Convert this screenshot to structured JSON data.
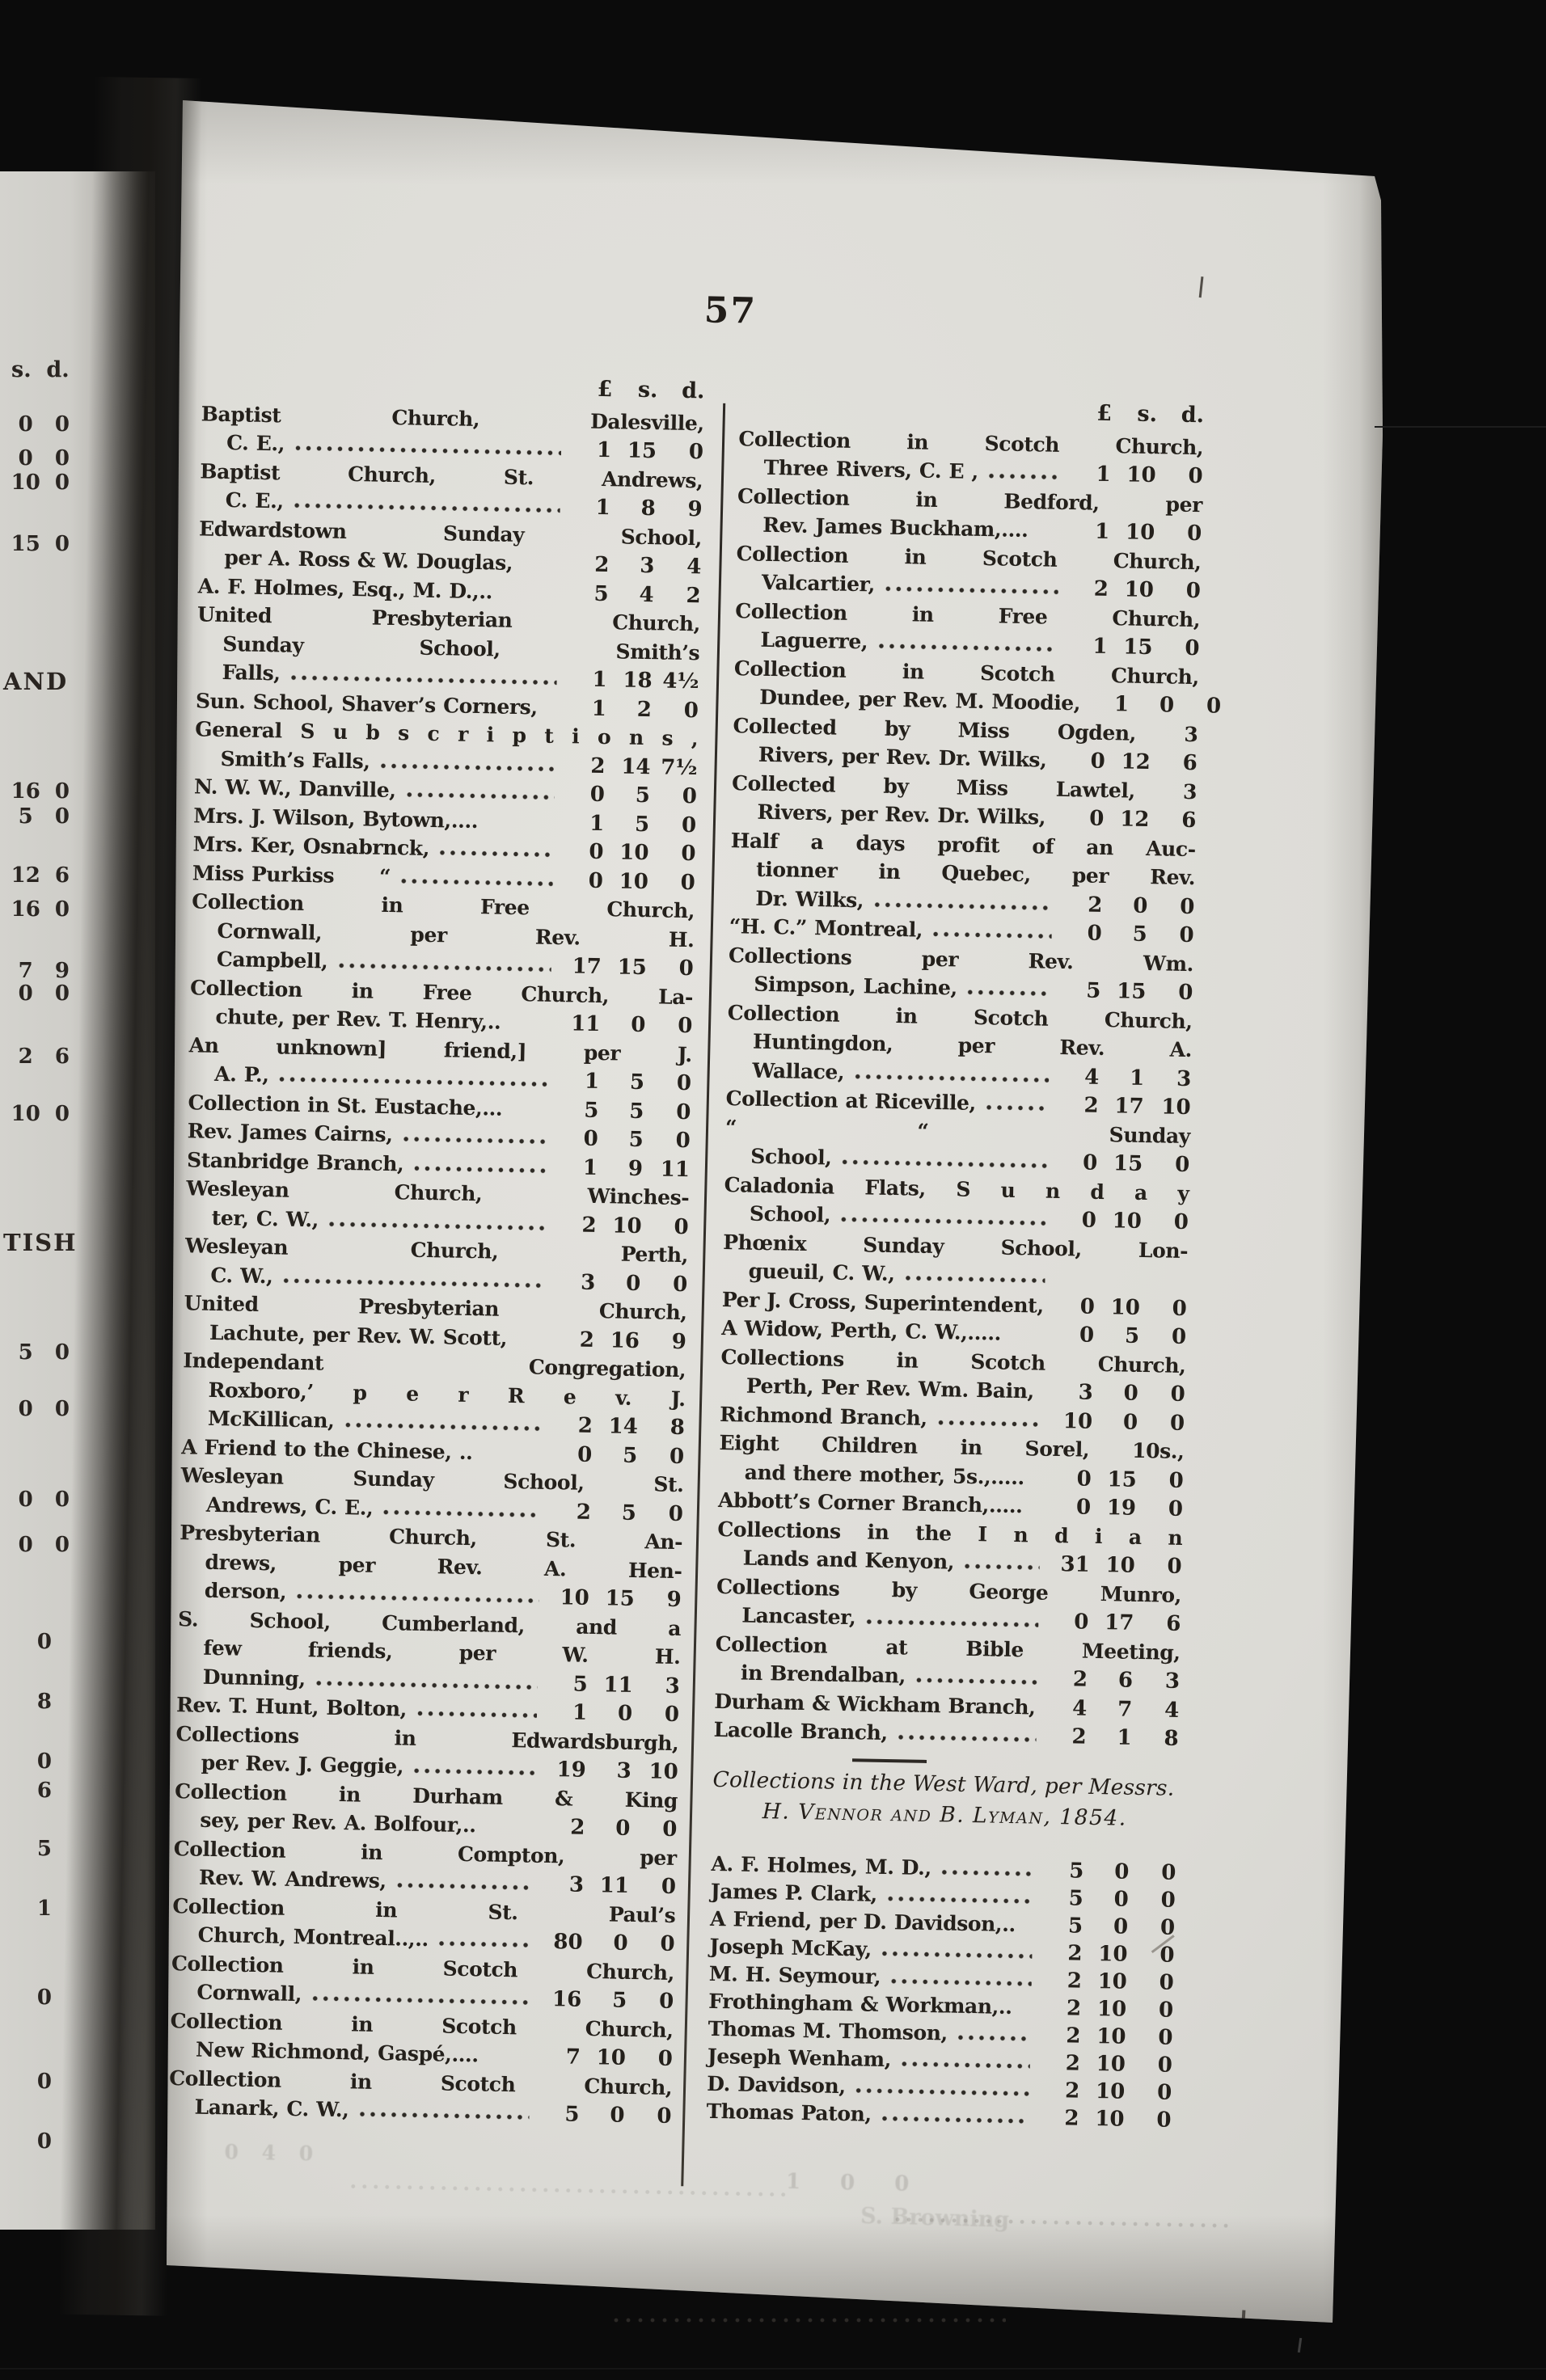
{
  "page_number": "57",
  "currency": {
    "pound": "£",
    "shilling": "s.",
    "pence": "d."
  },
  "left_margin": {
    "fragments": [
      "s.  d.",
      "0   0",
      "0   0",
      "10  0",
      "15  0",
      "AND",
      "16  0",
      "5   0",
      "12  6",
      "16  0",
      "7   9",
      "0   0",
      "2   6",
      "10  0",
      "TISH",
      "5   0",
      "0   0",
      "0   0",
      "0   0",
      "0",
      "8",
      "0",
      "6",
      "5",
      "1",
      "0",
      "0",
      "0"
    ]
  },
  "columns": {
    "left": [
      {
        "lines": [
          "Baptist Church, Dalesville,",
          "C. E.,"
        ],
        "leader": true,
        "amt": [
          "1",
          "15",
          "0"
        ]
      },
      {
        "lines": [
          "Baptist Church, St. Andrews,",
          "C. E.,"
        ],
        "leader": true,
        "amt": [
          "1",
          "8",
          "9"
        ]
      },
      {
        "lines": [
          "Edwardstown Sunday School,",
          "per A. Ross & W. Douglas,"
        ],
        "leader": false,
        "amt": [
          "2",
          "3",
          "4"
        ]
      },
      {
        "lines": [
          "A. F. Holmes, Esq., M. D.,.."
        ],
        "leader": false,
        "amt": [
          "5",
          "4",
          "2"
        ]
      },
      {
        "lines": [
          "United Presbyterian Church,",
          "Sunday School, Smith’s",
          "Falls,"
        ],
        "leader": true,
        "amt": [
          "1",
          "18",
          "4½"
        ]
      },
      {
        "lines": [
          "Sun. School, Shaver’s Corners,"
        ],
        "leader": false,
        "amt": [
          "1",
          "2",
          "0"
        ]
      },
      {
        "lines": [
          "General S u b s c r i p t i o n s ,",
          "Smith’s Falls,"
        ],
        "leader": true,
        "amt": [
          "2",
          "14",
          "7½"
        ]
      },
      {
        "lines": [
          "N. W. W., Danville,"
        ],
        "leader": true,
        "amt": [
          "0",
          "5",
          "0"
        ]
      },
      {
        "lines": [
          "Mrs. J. Wilson, Bytown,...."
        ],
        "leader": false,
        "amt": [
          "1",
          "5",
          "0"
        ]
      },
      {
        "lines": [
          "Mrs. Ker, Osnabrnck,"
        ],
        "leader": true,
        "amt": [
          "0",
          "10",
          "0"
        ]
      },
      {
        "lines": [
          "Miss Purkiss      “"
        ],
        "leader": true,
        "amt": [
          "0",
          "10",
          "0"
        ]
      },
      {
        "lines": [
          "Collection in Free Church,",
          "Cornwall, per Rev. H.",
          "Campbell,"
        ],
        "leader": true,
        "amt": [
          "17",
          "15",
          "0"
        ]
      },
      {
        "lines": [
          "Collection in Free Church, La-",
          "chute, per Rev. T. Henry,.."
        ],
        "leader": false,
        "amt": [
          "11",
          "0",
          "0"
        ]
      },
      {
        "lines": [
          "An unknown] friend,] per J.",
          "A. P.,"
        ],
        "leader": true,
        "amt": [
          "1",
          "5",
          "0"
        ]
      },
      {
        "lines": [
          "Collection in St. Eustache,..."
        ],
        "leader": false,
        "amt": [
          "5",
          "5",
          "0"
        ]
      },
      {
        "lines": [
          "Rev. James Cairns,"
        ],
        "leader": true,
        "amt": [
          "0",
          "5",
          "0"
        ]
      },
      {
        "lines": [
          "Stanbridge Branch,"
        ],
        "leader": true,
        "amt": [
          "1",
          "9",
          "11"
        ]
      },
      {
        "lines": [
          "Wesleyan Church, Winches-",
          "ter, C. W.,"
        ],
        "leader": true,
        "amt": [
          "2",
          "10",
          "0"
        ]
      },
      {
        "lines": [
          "Wesleyan Church, Perth,",
          "C. W.,"
        ],
        "leader": true,
        "amt": [
          "3",
          "0",
          "0"
        ]
      },
      {
        "lines": [
          "United Presbyterian Church,",
          "Lachute, per Rev. W. Scott,"
        ],
        "leader": false,
        "amt": [
          "2",
          "16",
          "9"
        ]
      },
      {
        "lines": [
          "Independant Congregation,",
          "Roxboro,’ p e r R e v. J.",
          "McKillican,"
        ],
        "leader": true,
        "amt": [
          "2",
          "14",
          "8"
        ]
      },
      {
        "lines": [
          "A Friend to the Chinese, .."
        ],
        "leader": false,
        "amt": [
          "0",
          "5",
          "0"
        ]
      },
      {
        "lines": [
          "Wesleyan Sunday School, St.",
          "Andrews, C. E.,"
        ],
        "leader": true,
        "amt": [
          "2",
          "5",
          "0"
        ]
      },
      {
        "lines": [
          "Presbyterian Church, St. An-",
          "drews, per Rev. A. Hen-",
          "derson,"
        ],
        "leader": true,
        "amt": [
          "10",
          "15",
          "9"
        ]
      },
      {
        "lines": [
          "S. School, Cumberland, and a",
          "few friends, per W. H.",
          "Dunning,"
        ],
        "leader": true,
        "amt": [
          "5",
          "11",
          "3"
        ]
      },
      {
        "lines": [
          "Rev. T. Hunt, Bolton,"
        ],
        "leader": true,
        "amt": [
          "1",
          "0",
          "0"
        ]
      },
      {
        "lines": [
          "Collections in Edwardsburgh,",
          "per Rev. J. Geggie,"
        ],
        "leader": true,
        "amt": [
          "19",
          "3",
          "10"
        ]
      },
      {
        "lines": [
          "Collection in Durham & King",
          "sey, per Rev. A. Bolfour,.."
        ],
        "leader": false,
        "amt": [
          "2",
          "0",
          "0"
        ]
      },
      {
        "lines": [
          "Collection in Compton, per",
          "Rev. W. Andrews,"
        ],
        "leader": true,
        "amt": [
          "3",
          "11",
          "0"
        ]
      },
      {
        "lines": [
          "Collection in St. Paul’s",
          "Church, Montreal..,.."
        ],
        "leader": true,
        "amt": [
          "80",
          "0",
          "0"
        ]
      },
      {
        "lines": [
          "Collection in Scotch Church,",
          "Cornwall,"
        ],
        "leader": true,
        "amt": [
          "16",
          "5",
          "0"
        ]
      },
      {
        "lines": [
          "Collection in Scotch Church,",
          "New Richmond, Gaspé,...."
        ],
        "leader": false,
        "amt": [
          "7",
          "10",
          "0"
        ]
      },
      {
        "lines": [
          "Collection in Scotch Church,",
          "Lanark, C. W.,"
        ],
        "leader": true,
        "amt": [
          "5",
          "0",
          "0"
        ]
      }
    ],
    "right": [
      {
        "lines": [
          "Collection in Scotch Church,",
          "Three Rivers, C. E ,"
        ],
        "leader": true,
        "amt": [
          "1",
          "10",
          "0"
        ]
      },
      {
        "lines": [
          "Collection in Bedford, per",
          "Rev. James Buckham,...."
        ],
        "leader": false,
        "amt": [
          "1",
          "10",
          "0"
        ]
      },
      {
        "lines": [
          "Collection in Scotch Church,",
          "Valcartier,"
        ],
        "leader": true,
        "amt": [
          "2",
          "10",
          "0"
        ]
      },
      {
        "lines": [
          "Collection in Free Church,",
          "Laguerre,"
        ],
        "leader": true,
        "amt": [
          "1",
          "15",
          "0"
        ]
      },
      {
        "lines": [
          "Collection in Scotch Church,",
          "Dundee, per Rev. M. Moodie,"
        ],
        "leader": false,
        "amt": [
          "1",
          "0",
          "0"
        ]
      },
      {
        "lines": [
          "Collected by Miss Ogden, 3",
          "Rivers, per Rev. Dr. Wilks,"
        ],
        "leader": false,
        "amt": [
          "0",
          "12",
          "6"
        ]
      },
      {
        "lines": [
          "Collected by Miss Lawtel, 3",
          "Rivers, per Rev. Dr. Wilks,"
        ],
        "leader": false,
        "amt": [
          "0",
          "12",
          "6"
        ]
      },
      {
        "lines": [
          "Half a days profit of an Auc-",
          "tionner in Quebec, per Rev.",
          "Dr. Wilks,"
        ],
        "leader": true,
        "amt": [
          "2",
          "0",
          "0"
        ]
      },
      {
        "lines": [
          "“H. C.” Montreal,"
        ],
        "leader": true,
        "amt": [
          "0",
          "5",
          "0"
        ]
      },
      {
        "lines": [
          "Collections per Rev. Wm.",
          "Simpson, Lachine,"
        ],
        "leader": true,
        "amt": [
          "5",
          "15",
          "0"
        ]
      },
      {
        "lines": [
          "Collection in Scotch Church,",
          "Huntingdon, per Rev. A.",
          "Wallace,"
        ],
        "leader": true,
        "amt": [
          "4",
          "1",
          "3"
        ]
      },
      {
        "lines": [
          "Collection at Riceville,"
        ],
        "leader": true,
        "amt": [
          "2",
          "17",
          "10"
        ]
      },
      {
        "lines": [
          "“ “ Sunday",
          "School,"
        ],
        "leader": true,
        "amt": [
          "0",
          "15",
          "0"
        ]
      },
      {
        "lines": [
          "Caladonia Flats, S u n d a y",
          "School,"
        ],
        "leader": true,
        "amt": [
          "0",
          "10",
          "0"
        ]
      },
      {
        "lines": [
          "Phœnix Sunday School, Lon-",
          "gueuil, C. W.,"
        ],
        "leader": true,
        "amt": [
          "",
          "",
          ""
        ]
      },
      {
        "lines": [
          "Per J. Cross, Superintendent,"
        ],
        "leader": false,
        "amt": [
          "0",
          "10",
          "0"
        ]
      },
      {
        "lines": [
          "A Widow, Perth, C. W.,....."
        ],
        "leader": false,
        "amt": [
          "0",
          "5",
          "0"
        ]
      },
      {
        "lines": [
          "Collections in Scotch Church,",
          "Perth, Per Rev. Wm. Bain,"
        ],
        "leader": false,
        "amt": [
          "3",
          "0",
          "0"
        ]
      },
      {
        "lines": [
          "Richmond Branch,"
        ],
        "leader": true,
        "amt": [
          "10",
          "0",
          "0"
        ]
      },
      {
        "lines": [
          "Eight Children in Sorel, 10s.,",
          "and there mother, 5s.,....."
        ],
        "leader": false,
        "amt": [
          "0",
          "15",
          "0"
        ]
      },
      {
        "lines": [
          "Abbott’s Corner Branch,....."
        ],
        "leader": false,
        "amt": [
          "0",
          "19",
          "0"
        ]
      },
      {
        "lines": [
          "Collections in the I n d i a n",
          "Lands and Kenyon,"
        ],
        "leader": true,
        "amt": [
          "31",
          "10",
          "0"
        ]
      },
      {
        "lines": [
          "Collections by George Munro,",
          "Lancaster,"
        ],
        "leader": true,
        "amt": [
          "0",
          "17",
          "6"
        ]
      },
      {
        "lines": [
          "Collection at Bible Meeting,",
          "in Brendalban,"
        ],
        "leader": true,
        "amt": [
          "2",
          "6",
          "3"
        ]
      },
      {
        "lines": [
          "Durham & Wickham Branch,"
        ],
        "leader": false,
        "amt": [
          "4",
          "7",
          "4"
        ]
      },
      {
        "lines": [
          "Lacolle Branch,"
        ],
        "leader": true,
        "amt": [
          "2",
          "1",
          "8"
        ]
      }
    ]
  },
  "west_ward": {
    "heading_line1": "Collections in the West Ward, per Messrs.",
    "heading_line2": "H. Vennor and B. Lyman, 1854.",
    "entries": [
      {
        "lines": [
          "A. F. Holmes, M. D.,"
        ],
        "leader": true,
        "amt": [
          "5",
          "0",
          "0"
        ]
      },
      {
        "lines": [
          "James P. Clark,"
        ],
        "leader": true,
        "amt": [
          "5",
          "0",
          "0"
        ]
      },
      {
        "lines": [
          "A Friend, per D. Davidson,.."
        ],
        "leader": false,
        "amt": [
          "5",
          "0",
          "0"
        ]
      },
      {
        "lines": [
          "Joseph McKay,"
        ],
        "leader": true,
        "amt": [
          "2",
          "10",
          "0"
        ]
      },
      {
        "lines": [
          "M. H. Seymour,"
        ],
        "leader": true,
        "amt": [
          "2",
          "10",
          "0"
        ]
      },
      {
        "lines": [
          "Frothingham & Workman,.."
        ],
        "leader": false,
        "amt": [
          "2",
          "10",
          "0"
        ]
      },
      {
        "lines": [
          "Thomas M. Thomson,"
        ],
        "leader": true,
        "amt": [
          "2",
          "10",
          "0"
        ]
      },
      {
        "lines": [
          "Jeseph Wenham,"
        ],
        "leader": true,
        "amt": [
          "2",
          "10",
          "0"
        ]
      },
      {
        "lines": [
          "D. Davidson,"
        ],
        "leader": true,
        "amt": [
          "2",
          "10",
          "0"
        ]
      },
      {
        "lines": [
          "Thomas Paton,"
        ],
        "leader": true,
        "amt": [
          "2",
          "10",
          "0"
        ]
      }
    ]
  },
  "ghosts": {
    "g1": "0 4 0",
    "g2": "1 0 0",
    "g3": "S. Browning"
  }
}
